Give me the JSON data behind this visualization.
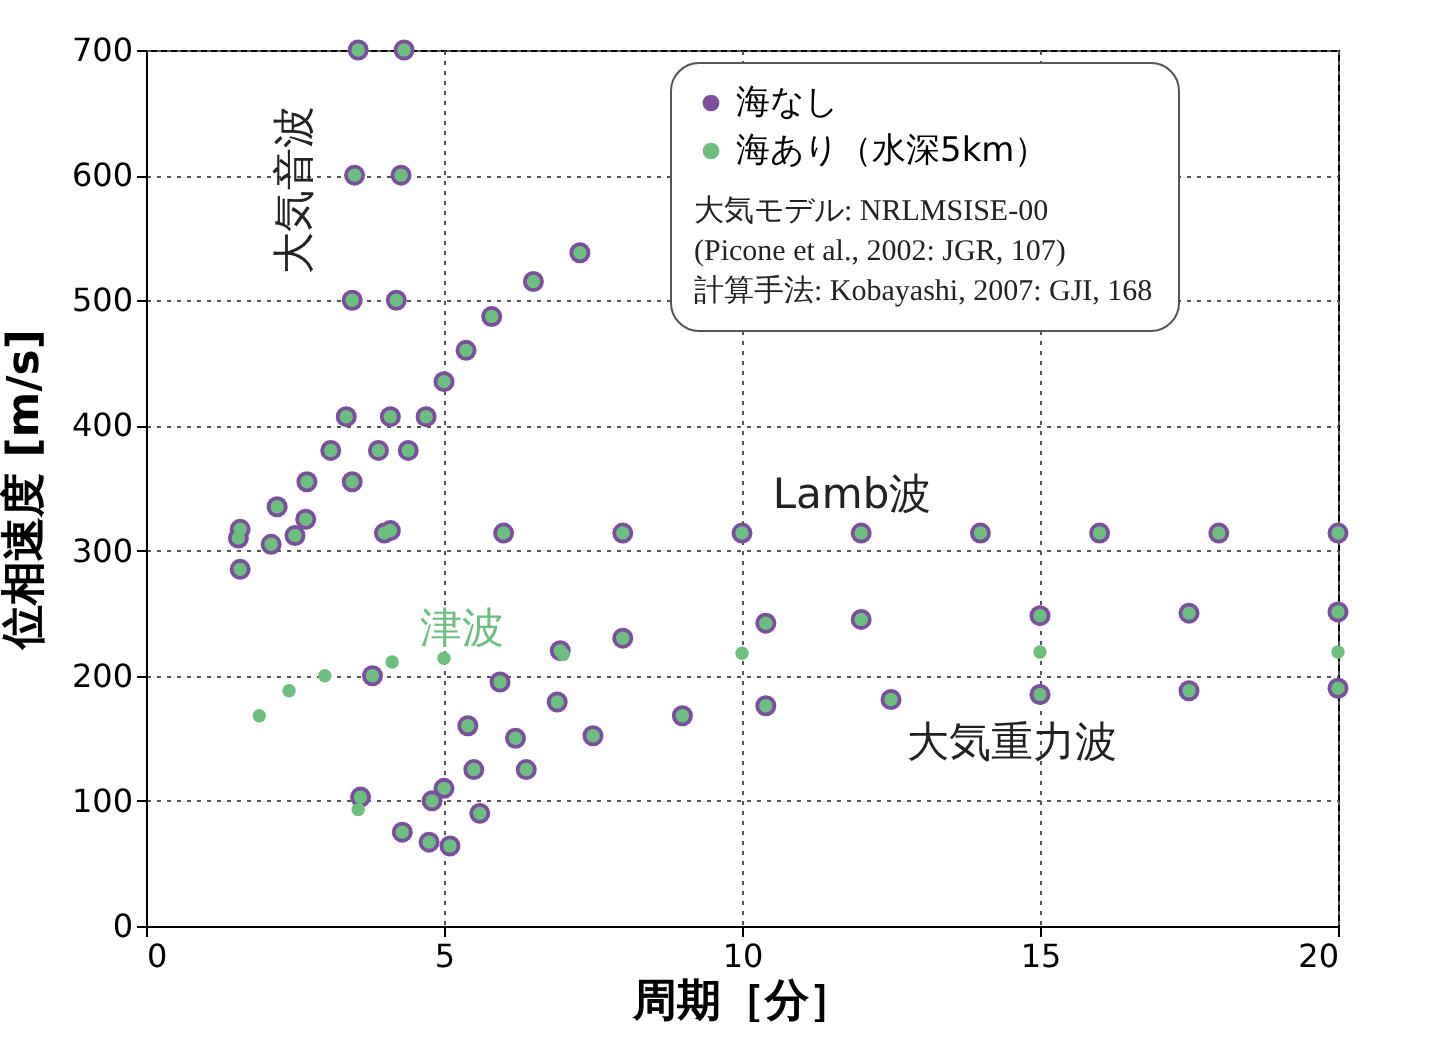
{
  "chart_data": {
    "type": "scatter",
    "xlabel": "周期［分］",
    "ylabel": "位相速度 [m/s]",
    "xlim": [
      0,
      20
    ],
    "xticks": [
      0,
      5,
      10,
      15,
      20
    ],
    "ylim": [
      0,
      700
    ],
    "yticks": [
      0,
      100,
      200,
      300,
      400,
      500,
      600,
      700
    ],
    "grid": true,
    "legend": "top right",
    "marker": "circle",
    "series": [
      {
        "name": "海なし",
        "color": "#7b4ea0",
        "x": [
          3.56,
          3.5,
          3.46,
          3.36,
          3.1,
          2.7,
          2.2,
          1.58,
          4.33,
          4.28,
          4.2,
          4.1,
          3.9,
          3.46,
          2.68,
          2.1,
          1.58,
          1.55,
          2.5,
          4,
          6,
          8,
          10,
          12,
          14,
          16,
          18,
          20,
          3.6,
          3.8,
          4.1,
          4.4,
          4.7,
          5.0,
          5.37,
          5.8,
          6.5,
          7.28,
          4.75,
          5.0,
          5.4,
          5.94,
          6.95,
          8,
          10.4,
          12,
          15,
          17.5,
          20,
          4.3,
          4.8,
          5.5,
          6.2,
          6.9,
          5.1,
          5.6,
          6.38,
          7.5,
          9,
          10.4,
          12.5,
          15,
          17.5,
          20
        ],
        "values": [
          700,
          600,
          500,
          407,
          380,
          355,
          335,
          317,
          700,
          600,
          500,
          407,
          380,
          355,
          325,
          305,
          285,
          310,
          312,
          314,
          314,
          314,
          314,
          314,
          314,
          314,
          314,
          314,
          103,
          200,
          316,
          380,
          407,
          435,
          460,
          487,
          515,
          538,
          67,
          110,
          160,
          195,
          220,
          230,
          242,
          245,
          248,
          250,
          251,
          75,
          100,
          125,
          150,
          179,
          64,
          90,
          125,
          152,
          168,
          176,
          181,
          185,
          188,
          190
        ]
      },
      {
        "name": "海あり（水深5km）",
        "color": "#6cc07f",
        "x": [
          3.56,
          3.5,
          3.46,
          3.36,
          3.1,
          2.7,
          2.2,
          1.58,
          4.33,
          4.28,
          4.2,
          4.1,
          3.9,
          3.46,
          2.68,
          2.1,
          1.58,
          1.55,
          2.5,
          4,
          6,
          8,
          10,
          12,
          14,
          16,
          18,
          20,
          3.56,
          3.6,
          3.8,
          4.1,
          4.4,
          4.7,
          5.0,
          5.37,
          5.8,
          6.5,
          7.28,
          4.75,
          5.0,
          5.4,
          5.94,
          6.95,
          8,
          10.4,
          12,
          15,
          17.5,
          20,
          4.3,
          4.8,
          5.5,
          6.2,
          6.9,
          5.1,
          5.6,
          6.38,
          7.5,
          9,
          10.4,
          12.5,
          15,
          17.5,
          20,
          1.9,
          2.4,
          3.0,
          4.13,
          5,
          7,
          10,
          15,
          20
        ],
        "values": [
          700,
          600,
          500,
          407,
          380,
          355,
          335,
          317,
          700,
          600,
          500,
          407,
          380,
          355,
          325,
          305,
          285,
          310,
          312,
          314,
          314,
          314,
          314,
          314,
          314,
          314,
          314,
          314,
          93,
          103,
          200,
          316,
          380,
          407,
          435,
          460,
          487,
          515,
          538,
          67,
          110,
          160,
          195,
          220,
          230,
          242,
          245,
          248,
          250,
          251,
          75,
          100,
          125,
          150,
          179,
          64,
          90,
          125,
          152,
          168,
          176,
          181,
          185,
          188,
          190,
          168,
          188,
          200,
          211,
          214,
          217,
          218,
          219,
          219
        ]
      }
    ],
    "annotations": [
      "大気音波",
      "Lamb波",
      "津波",
      "大気重力波",
      "大気モデル: NRLMSISE-00",
      "(Picone et al., 2002: JGR, 107)",
      "計算手法: Kobayashi, 2007: GJI, 168"
    ]
  }
}
